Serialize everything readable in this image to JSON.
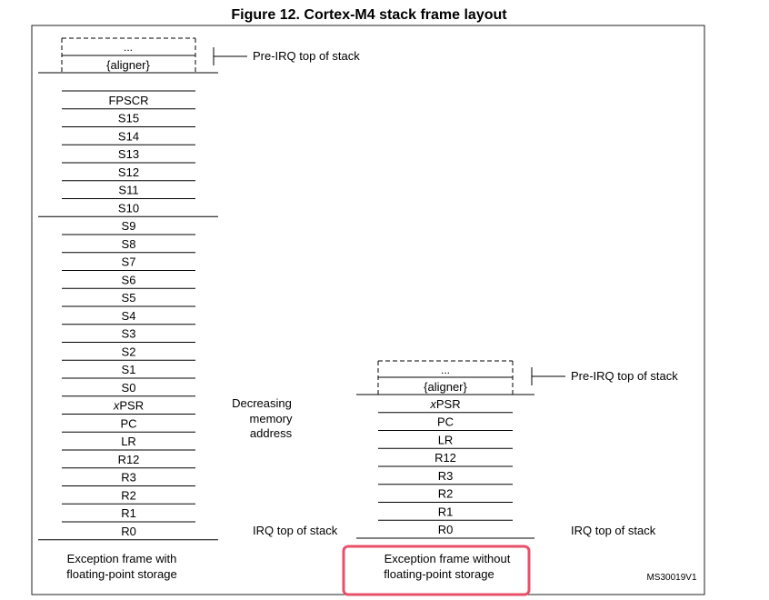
{
  "title": "Figure 12. Cortex-M4 stack frame layout",
  "left_frame": {
    "ellipsis": "...",
    "aligner": "{aligner}",
    "pre_irq_label": "Pre-IRQ top of stack",
    "registers": [
      "FPSCR",
      "S15",
      "S14",
      "S13",
      "S12",
      "S11",
      "S10",
      "S9",
      "S8",
      "S7",
      "S6",
      "S5",
      "S4",
      "S3",
      "S2",
      "S1",
      "S0",
      "xPSR",
      "PC",
      "LR",
      "R12",
      "R3",
      "R2",
      "R1",
      "R0"
    ],
    "caption_line1": "Exception frame with",
    "caption_line2": "floating-point storage"
  },
  "middle_note": {
    "line1": "Decreasing",
    "line2": "memory",
    "line3": "address"
  },
  "irq_label_left": "IRQ top of stack",
  "right_frame": {
    "ellipsis": "...",
    "aligner": "{aligner}",
    "pre_irq_label": "Pre-IRQ top of stack",
    "registers": [
      "xPSR",
      "PC",
      "LR",
      "R12",
      "R3",
      "R2",
      "R1",
      "R0"
    ],
    "caption_line1": "Exception frame without",
    "caption_line2": "floating-point storage"
  },
  "irq_label_right": "IRQ top of stack",
  "figure_id": "MS30019V1",
  "highlight_color": "#e8506a"
}
